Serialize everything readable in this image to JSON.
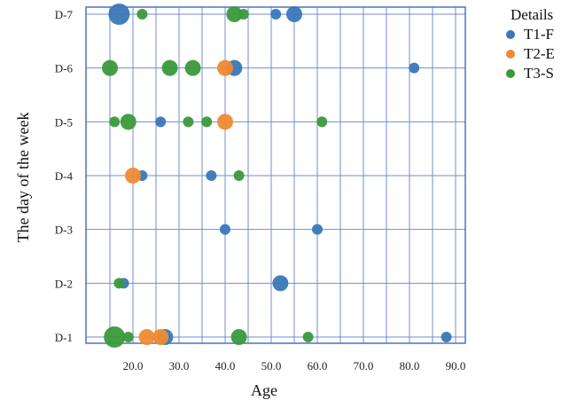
{
  "chart_data": {
    "type": "scatter",
    "xlabel": "Age",
    "ylabel": "The day of the week",
    "xlim": [
      10,
      95
    ],
    "x_ticks": [
      20,
      30,
      40,
      50,
      60,
      70,
      80,
      90
    ],
    "x_tick_labels": [
      "20.0",
      "30.0",
      "40.0",
      "50.0",
      "60.0",
      "70.0",
      "80.0",
      "90.0"
    ],
    "y_categories": [
      "D-1",
      "D-2",
      "D-3",
      "D-4",
      "D-5",
      "D-6",
      "D-7"
    ],
    "grid": true,
    "legend": {
      "title": "Details",
      "placement": "right",
      "entries": [
        {
          "label": "T1-F",
          "color": "#3a78b8"
        },
        {
          "label": "T2-E",
          "color": "#f08a30"
        },
        {
          "label": "T3-S",
          "color": "#3a9a3a"
        }
      ]
    },
    "series": [
      {
        "name": "T1-F",
        "color": "#3a78b8",
        "points": [
          {
            "x": 17,
            "y": "D-7",
            "size": 3
          },
          {
            "x": 51,
            "y": "D-7",
            "size": 1
          },
          {
            "x": 55,
            "y": "D-7",
            "size": 2
          },
          {
            "x": 42,
            "y": "D-6",
            "size": 2
          },
          {
            "x": 81,
            "y": "D-6",
            "size": 1
          },
          {
            "x": 26,
            "y": "D-5",
            "size": 1
          },
          {
            "x": 22,
            "y": "D-4",
            "size": 1
          },
          {
            "x": 37,
            "y": "D-4",
            "size": 1
          },
          {
            "x": 40,
            "y": "D-3",
            "size": 1
          },
          {
            "x": 60,
            "y": "D-3",
            "size": 1
          },
          {
            "x": 18,
            "y": "D-2",
            "size": 1
          },
          {
            "x": 52,
            "y": "D-2",
            "size": 2
          },
          {
            "x": 27,
            "y": "D-1",
            "size": 2
          },
          {
            "x": 88,
            "y": "D-1",
            "size": 1
          }
        ]
      },
      {
        "name": "T2-E",
        "color": "#f08a30",
        "points": [
          {
            "x": 40,
            "y": "D-6",
            "size": 2
          },
          {
            "x": 40,
            "y": "D-5",
            "size": 2
          },
          {
            "x": 20,
            "y": "D-4",
            "size": 2
          },
          {
            "x": 23,
            "y": "D-1",
            "size": 2
          },
          {
            "x": 26,
            "y": "D-1",
            "size": 2
          }
        ]
      },
      {
        "name": "T3-S",
        "color": "#3a9a3a",
        "points": [
          {
            "x": 22,
            "y": "D-7",
            "size": 1
          },
          {
            "x": 42,
            "y": "D-7",
            "size": 2
          },
          {
            "x": 44,
            "y": "D-7",
            "size": 1
          },
          {
            "x": 15,
            "y": "D-6",
            "size": 2
          },
          {
            "x": 28,
            "y": "D-6",
            "size": 2
          },
          {
            "x": 33,
            "y": "D-6",
            "size": 2
          },
          {
            "x": 16,
            "y": "D-5",
            "size": 1
          },
          {
            "x": 19,
            "y": "D-5",
            "size": 2
          },
          {
            "x": 32,
            "y": "D-5",
            "size": 1
          },
          {
            "x": 36,
            "y": "D-5",
            "size": 1
          },
          {
            "x": 61,
            "y": "D-5",
            "size": 1
          },
          {
            "x": 43,
            "y": "D-4",
            "size": 1
          },
          {
            "x": 17,
            "y": "D-2",
            "size": 1
          },
          {
            "x": 16,
            "y": "D-1",
            "size": 3
          },
          {
            "x": 19,
            "y": "D-1",
            "size": 1
          },
          {
            "x": 43,
            "y": "D-1",
            "size": 2
          },
          {
            "x": 58,
            "y": "D-1",
            "size": 1
          }
        ]
      }
    ]
  }
}
